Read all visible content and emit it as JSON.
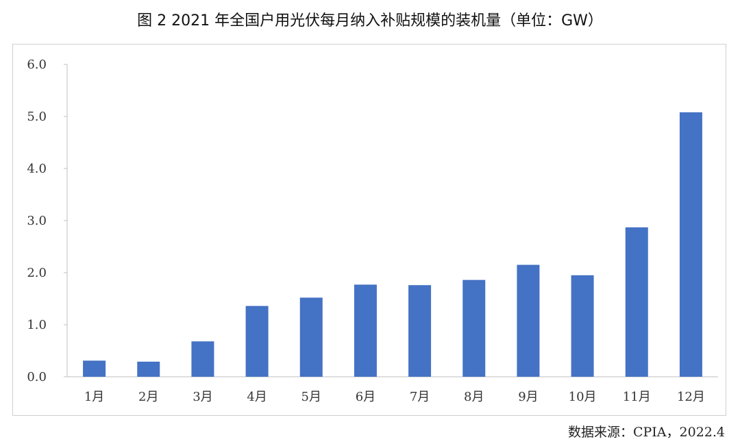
{
  "title": "图 2 2021 年全国户用光伏每月纳入补贴规模的装机量（单位：GW）",
  "source": "数据来源：CPIA，2022.4",
  "colors": {
    "bar": "#4472C4",
    "axis": "#bfbfbf",
    "frame": "#cfcfcf"
  },
  "chart_data": {
    "type": "bar",
    "title": "图 2 2021 年全国户用光伏每月纳入补贴规模的装机量（单位：GW）",
    "xlabel": "",
    "ylabel": "",
    "categories": [
      "1月",
      "2月",
      "3月",
      "4月",
      "5月",
      "6月",
      "7月",
      "8月",
      "9月",
      "10月",
      "11月",
      "12月"
    ],
    "values": [
      0.31,
      0.29,
      0.68,
      1.36,
      1.52,
      1.77,
      1.76,
      1.86,
      2.15,
      1.95,
      2.87,
      5.08
    ],
    "ylim": [
      0,
      6
    ],
    "yticks": [
      "0.0",
      "1.0",
      "2.0",
      "3.0",
      "4.0",
      "5.0",
      "6.0"
    ],
    "grid": false,
    "legend": "none"
  }
}
